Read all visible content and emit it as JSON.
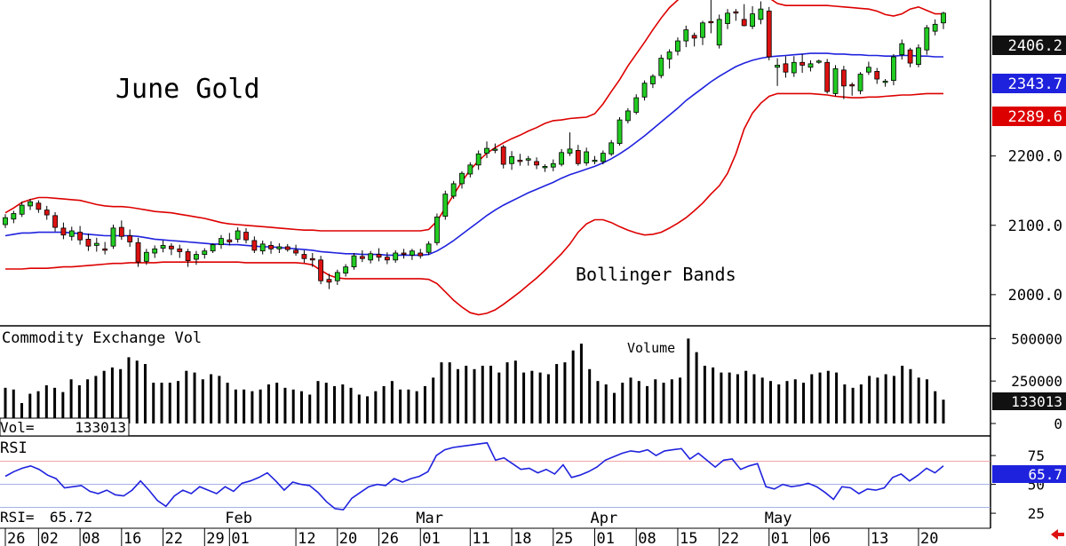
{
  "chart_data": [
    {
      "type": "candlestick",
      "title": "June Gold",
      "annotation": "Bollinger Bands",
      "ylim": [
        1955,
        2425
      ],
      "y_ticks": [
        "2200.0",
        "2100.0",
        "2000.0"
      ],
      "price_labels": {
        "last": "2406.2",
        "middle": "2343.7",
        "lower": "2289.6"
      },
      "ohlc": [
        [
          2101,
          2116,
          2096,
          2111
        ],
        [
          2109,
          2121,
          2103,
          2117
        ],
        [
          2116,
          2134,
          2112,
          2129
        ],
        [
          2128,
          2138,
          2122,
          2134
        ],
        [
          2132,
          2136,
          2118,
          2123
        ],
        [
          2122,
          2128,
          2108,
          2115
        ],
        [
          2114,
          2119,
          2091,
          2097
        ],
        [
          2096,
          2104,
          2080,
          2086
        ],
        [
          2084,
          2098,
          2078,
          2092
        ],
        [
          2090,
          2099,
          2072,
          2079
        ],
        [
          2080,
          2088,
          2063,
          2070
        ],
        [
          2071,
          2082,
          2062,
          2074
        ],
        [
          2066,
          2076,
          2058,
          2064
        ],
        [
          2070,
          2101,
          2066,
          2096
        ],
        [
          2097,
          2107,
          2079,
          2084
        ],
        [
          2085,
          2094,
          2069,
          2076
        ],
        [
          2075,
          2082,
          2040,
          2047
        ],
        [
          2048,
          2066,
          2043,
          2061
        ],
        [
          2060,
          2071,
          2053,
          2066
        ],
        [
          2067,
          2078,
          2061,
          2071
        ],
        [
          2070,
          2074,
          2057,
          2066
        ],
        [
          2066,
          2072,
          2053,
          2062
        ],
        [
          2062,
          2066,
          2040,
          2049
        ],
        [
          2051,
          2063,
          2043,
          2058
        ],
        [
          2058,
          2067,
          2052,
          2063
        ],
        [
          2063,
          2074,
          2060,
          2072
        ],
        [
          2072,
          2086,
          2066,
          2081
        ],
        [
          2079,
          2089,
          2071,
          2076
        ],
        [
          2080,
          2097,
          2075,
          2092
        ],
        [
          2090,
          2096,
          2074,
          2079
        ],
        [
          2078,
          2084,
          2060,
          2064
        ],
        [
          2063,
          2078,
          2058,
          2073
        ],
        [
          2071,
          2077,
          2059,
          2066
        ],
        [
          2066,
          2074,
          2060,
          2069
        ],
        [
          2069,
          2073,
          2062,
          2065
        ],
        [
          2064,
          2072,
          2056,
          2060
        ],
        [
          2058,
          2064,
          2046,
          2052
        ],
        [
          2052,
          2060,
          2040,
          2050
        ],
        [
          2050,
          2056,
          2015,
          2020
        ],
        [
          2022,
          2030,
          2008,
          2018
        ],
        [
          2020,
          2036,
          2014,
          2032
        ],
        [
          2031,
          2044,
          2026,
          2040
        ],
        [
          2040,
          2060,
          2036,
          2056
        ],
        [
          2055,
          2064,
          2047,
          2052
        ],
        [
          2050,
          2063,
          2045,
          2059
        ],
        [
          2058,
          2067,
          2048,
          2054
        ],
        [
          2054,
          2061,
          2044,
          2050
        ],
        [
          2050,
          2064,
          2046,
          2060
        ],
        [
          2060,
          2066,
          2052,
          2058
        ],
        [
          2057,
          2066,
          2050,
          2063
        ],
        [
          2060,
          2066,
          2052,
          2056
        ],
        [
          2061,
          2077,
          2057,
          2073
        ],
        [
          2075,
          2117,
          2071,
          2112
        ],
        [
          2113,
          2150,
          2108,
          2145
        ],
        [
          2142,
          2164,
          2138,
          2160
        ],
        [
          2160,
          2178,
          2153,
          2175
        ],
        [
          2174,
          2191,
          2169,
          2187
        ],
        [
          2187,
          2208,
          2180,
          2203
        ],
        [
          2204,
          2221,
          2197,
          2211
        ],
        [
          2210,
          2218,
          2204,
          2210
        ],
        [
          2213,
          2216,
          2182,
          2188
        ],
        [
          2189,
          2207,
          2180,
          2199
        ],
        [
          2194,
          2203,
          2186,
          2192
        ],
        [
          2194,
          2200,
          2186,
          2196
        ],
        [
          2192,
          2198,
          2181,
          2187
        ],
        [
          2185,
          2188,
          2177,
          2185
        ],
        [
          2184,
          2195,
          2178,
          2189
        ],
        [
          2188,
          2210,
          2185,
          2205
        ],
        [
          2204,
          2234,
          2200,
          2210
        ],
        [
          2208,
          2216,
          2186,
          2189
        ],
        [
          2190,
          2212,
          2186,
          2206
        ],
        [
          2193,
          2200,
          2188,
          2194
        ],
        [
          2192,
          2208,
          2188,
          2204
        ],
        [
          2203,
          2223,
          2200,
          2219
        ],
        [
          2218,
          2256,
          2215,
          2252
        ],
        [
          2251,
          2269,
          2247,
          2265
        ],
        [
          2263,
          2289,
          2260,
          2284
        ],
        [
          2285,
          2309,
          2280,
          2305
        ],
        [
          2304,
          2318,
          2298,
          2315
        ],
        [
          2316,
          2346,
          2312,
          2341
        ],
        [
          2340,
          2354,
          2326,
          2350
        ],
        [
          2351,
          2371,
          2345,
          2366
        ],
        [
          2366,
          2388,
          2357,
          2382
        ],
        [
          2374,
          2378,
          2358,
          2370
        ],
        [
          2371,
          2395,
          2360,
          2392
        ],
        [
          2394,
          2429,
          2377,
          2393
        ],
        [
          2360,
          2404,
          2355,
          2397
        ],
        [
          2391,
          2412,
          2383,
          2406
        ],
        [
          2408,
          2412,
          2395,
          2407
        ],
        [
          2397,
          2419,
          2387,
          2388
        ],
        [
          2387,
          2416,
          2383,
          2405
        ],
        [
          2397,
          2423,
          2390,
          2412
        ],
        [
          2409,
          2415,
          2338,
          2343
        ],
        [
          2328,
          2341,
          2301,
          2331
        ],
        [
          2333,
          2344,
          2313,
          2321
        ],
        [
          2320,
          2344,
          2314,
          2335
        ],
        [
          2335,
          2347,
          2320,
          2331
        ],
        [
          2328,
          2338,
          2322,
          2333
        ],
        [
          2337,
          2339,
          2333,
          2337
        ],
        [
          2335,
          2340,
          2290,
          2293
        ],
        [
          2290,
          2331,
          2286,
          2326
        ],
        [
          2324,
          2330,
          2282,
          2301
        ],
        [
          2303,
          2306,
          2287,
          2301
        ],
        [
          2294,
          2321,
          2289,
          2318
        ],
        [
          2321,
          2336,
          2317,
          2328
        ],
        [
          2322,
          2327,
          2304,
          2311
        ],
        [
          2307,
          2311,
          2300,
          2308
        ],
        [
          2309,
          2347,
          2302,
          2343
        ],
        [
          2346,
          2368,
          2339,
          2362
        ],
        [
          2353,
          2356,
          2328,
          2334
        ],
        [
          2332,
          2361,
          2328,
          2356
        ],
        [
          2353,
          2389,
          2346,
          2385
        ],
        [
          2380,
          2397,
          2374,
          2390
        ],
        [
          2392,
          2408,
          2383,
          2406
        ]
      ],
      "middle_band": [
        2085,
        2087,
        2089,
        2089,
        2090,
        2090,
        2090,
        2090,
        2089,
        2088,
        2087,
        2086,
        2085,
        2085,
        2085,
        2085,
        2084,
        2082,
        2080,
        2079,
        2078,
        2077,
        2076,
        2075,
        2074,
        2073,
        2073,
        2072,
        2072,
        2071,
        2070,
        2069,
        2069,
        2068,
        2067,
        2066,
        2065,
        2064,
        2062,
        2061,
        2060,
        2059,
        2059,
        2058,
        2058,
        2058,
        2057,
        2057,
        2057,
        2057,
        2057,
        2058,
        2063,
        2070,
        2078,
        2087,
        2096,
        2105,
        2114,
        2122,
        2129,
        2135,
        2141,
        2147,
        2152,
        2157,
        2162,
        2168,
        2173,
        2177,
        2181,
        2185,
        2190,
        2196,
        2203,
        2211,
        2220,
        2229,
        2239,
        2249,
        2259,
        2269,
        2280,
        2289,
        2298,
        2307,
        2315,
        2322,
        2329,
        2334,
        2338,
        2341,
        2343,
        2344,
        2345,
        2346,
        2347,
        2348,
        2348,
        2348,
        2347,
        2347,
        2346,
        2346,
        2345,
        2345,
        2344,
        2344,
        2345,
        2345,
        2344,
        2344,
        2343,
        2343
      ],
      "upper_band": [
        2118,
        2125,
        2133,
        2137,
        2140,
        2140,
        2139,
        2138,
        2137,
        2136,
        2133,
        2130,
        2128,
        2127,
        2127,
        2126,
        2124,
        2122,
        2120,
        2119,
        2118,
        2116,
        2114,
        2112,
        2110,
        2107,
        2104,
        2102,
        2101,
        2100,
        2099,
        2098,
        2097,
        2096,
        2095,
        2094,
        2093,
        2093,
        2092,
        2092,
        2092,
        2092,
        2092,
        2092,
        2092,
        2092,
        2092,
        2092,
        2092,
        2092,
        2092,
        2094,
        2106,
        2125,
        2144,
        2163,
        2180,
        2193,
        2204,
        2212,
        2219,
        2225,
        2230,
        2236,
        2241,
        2247,
        2251,
        2252,
        2254,
        2255,
        2256,
        2261,
        2275,
        2293,
        2310,
        2330,
        2347,
        2364,
        2382,
        2399,
        2414,
        2425,
        2437,
        2443,
        2448,
        2454,
        2459,
        2464,
        2464,
        2458,
        2448,
        2438,
        2428,
        2420,
        2417,
        2417,
        2417,
        2417,
        2417,
        2417,
        2416,
        2415,
        2414,
        2413,
        2412,
        2409,
        2404,
        2402,
        2405,
        2412,
        2415,
        2410,
        2405,
        2405
      ],
      "lower_band": [
        2037,
        2037,
        2037,
        2038,
        2038,
        2038,
        2039,
        2040,
        2040,
        2041,
        2042,
        2043,
        2044,
        2045,
        2045,
        2046,
        2046,
        2046,
        2046,
        2047,
        2047,
        2047,
        2047,
        2047,
        2047,
        2047,
        2047,
        2047,
        2047,
        2046,
        2046,
        2046,
        2046,
        2046,
        2046,
        2046,
        2045,
        2043,
        2035,
        2028,
        2024,
        2023,
        2023,
        2023,
        2023,
        2023,
        2023,
        2023,
        2023,
        2023,
        2023,
        2022,
        2016,
        2004,
        1992,
        1982,
        1974,
        1971,
        1973,
        1978,
        1986,
        1995,
        2004,
        2014,
        2024,
        2035,
        2047,
        2059,
        2073,
        2090,
        2102,
        2108,
        2108,
        2104,
        2098,
        2093,
        2089,
        2086,
        2087,
        2090,
        2096,
        2103,
        2111,
        2121,
        2132,
        2145,
        2157,
        2175,
        2203,
        2239,
        2262,
        2276,
        2286,
        2290,
        2290,
        2290,
        2290,
        2290,
        2289,
        2288,
        2286,
        2285,
        2284,
        2284,
        2285,
        2285,
        2286,
        2287,
        2288,
        2288,
        2289,
        2290,
        2290,
        2290
      ]
    },
    {
      "type": "bar",
      "title": "Commodity Exchange Vol",
      "annotation": "Volume",
      "ylim": [
        0,
        575000
      ],
      "y_ticks": [
        "500000",
        "250000",
        "0"
      ],
      "readout_label": "Vol=",
      "readout_value": "133013",
      "last_label": "133013",
      "values": [
        210000,
        200000,
        120000,
        175000,
        190000,
        225000,
        210000,
        185000,
        260000,
        225000,
        260000,
        280000,
        310000,
        330000,
        320000,
        390000,
        370000,
        350000,
        240000,
        240000,
        240000,
        250000,
        310000,
        300000,
        260000,
        290000,
        280000,
        240000,
        200000,
        200000,
        190000,
        200000,
        230000,
        240000,
        210000,
        200000,
        190000,
        170000,
        250000,
        240000,
        220000,
        230000,
        210000,
        170000,
        160000,
        190000,
        220000,
        250000,
        200000,
        200000,
        190000,
        220000,
        270000,
        360000,
        360000,
        320000,
        340000,
        320000,
        340000,
        340000,
        300000,
        360000,
        370000,
        300000,
        310000,
        300000,
        290000,
        350000,
        360000,
        430000,
        470000,
        320000,
        250000,
        230000,
        180000,
        240000,
        270000,
        250000,
        220000,
        260000,
        240000,
        260000,
        270000,
        500000,
        420000,
        340000,
        330000,
        300000,
        300000,
        290000,
        310000,
        290000,
        270000,
        250000,
        230000,
        250000,
        260000,
        240000,
        290000,
        300000,
        310000,
        300000,
        230000,
        210000,
        230000,
        280000,
        270000,
        290000,
        280000,
        340000,
        320000,
        270000,
        260000,
        190000,
        140000
      ]
    },
    {
      "type": "line",
      "title": "RSI",
      "ylim": [
        12,
        92
      ],
      "y_ticks": [
        "75",
        "50",
        "25"
      ],
      "reference_lines": [
        70,
        50,
        30
      ],
      "readout_label": "RSI=",
      "readout_value": "65.72",
      "last_label": "65.7",
      "values": [
        57,
        61,
        64,
        66,
        63,
        58,
        55,
        47,
        48,
        49,
        44,
        42,
        45,
        41,
        40,
        45,
        53,
        45,
        36,
        31,
        40,
        45,
        42,
        48,
        45,
        42,
        48,
        44,
        51,
        53,
        56,
        60,
        53,
        45,
        52,
        50,
        49,
        43,
        35,
        29,
        28,
        38,
        43,
        48,
        50,
        49,
        55,
        52,
        55,
        57,
        61,
        75,
        80,
        82,
        83,
        84,
        85,
        86,
        71,
        73,
        68,
        63,
        64,
        60,
        63,
        59,
        67,
        56,
        58,
        61,
        65,
        71,
        74,
        77,
        79,
        78,
        80,
        75,
        79,
        80,
        81,
        72,
        77,
        71,
        65,
        71,
        72,
        63,
        66,
        68,
        48,
        46,
        50,
        48,
        49,
        51,
        48,
        43,
        37,
        48,
        47,
        42,
        46,
        45,
        47,
        56,
        59,
        53,
        58,
        64,
        60,
        66
      ],
      "x_tick_labels": [
        "26",
        "02",
        "08",
        "16",
        "22",
        "29",
        "01",
        "12",
        "20",
        "26",
        "01",
        "11",
        "18",
        "25",
        "01",
        "08",
        "15",
        "22",
        "01",
        "06",
        "13",
        "20"
      ],
      "month_labels": [
        "Feb",
        "Mar",
        "Apr",
        "May"
      ]
    }
  ],
  "colors": {
    "up": "#22cc22",
    "down": "#dd1111",
    "band": "#dd0000",
    "mid": "#1f22dd",
    "rsi": "#1f22dd",
    "volume": "#000000",
    "arrow": "#dd1111"
  },
  "icon": "left-arrow-icon"
}
